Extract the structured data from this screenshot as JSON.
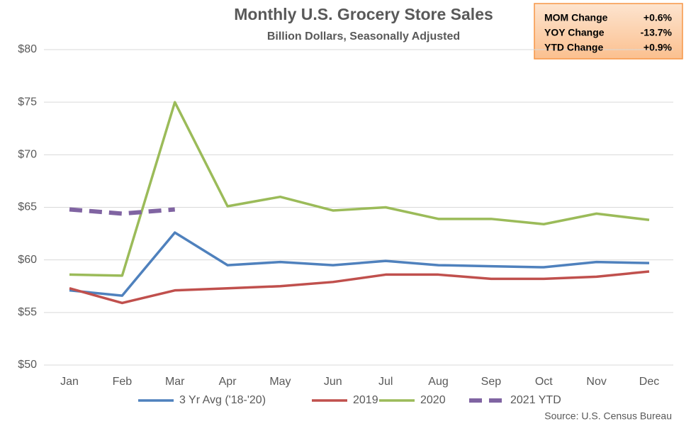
{
  "chart_data": {
    "type": "line",
    "title": "Monthly U.S. Grocery Store Sales",
    "subtitle": "Billion Dollars, Seasonally Adjusted",
    "categories": [
      "Jan",
      "Feb",
      "Mar",
      "Apr",
      "May",
      "Jun",
      "Jul",
      "Aug",
      "Sep",
      "Oct",
      "Nov",
      "Dec"
    ],
    "series": [
      {
        "name": "3 Yr Avg ('18-'20)",
        "color": "#4f81bd",
        "values": [
          57.1,
          56.6,
          62.6,
          59.5,
          59.8,
          59.5,
          59.9,
          59.5,
          59.4,
          59.3,
          59.8,
          59.7
        ]
      },
      {
        "name": "2019",
        "color": "#c0504d",
        "values": [
          57.3,
          55.9,
          57.1,
          57.3,
          57.5,
          57.9,
          58.6,
          58.6,
          58.2,
          58.2,
          58.4,
          58.9
        ]
      },
      {
        "name": "2020",
        "color": "#9bbb59",
        "values": [
          58.6,
          58.5,
          75.0,
          65.1,
          66.0,
          64.7,
          65.0,
          63.9,
          63.9,
          63.4,
          64.4,
          63.8
        ]
      },
      {
        "name": "2021 YTD",
        "color": "#8064a2",
        "style": "dashed",
        "values": [
          64.8,
          64.4,
          64.8,
          null,
          null,
          null,
          null,
          null,
          null,
          null,
          null,
          null
        ]
      }
    ],
    "ylim": [
      50,
      80
    ],
    "yticks": [
      {
        "value": 50,
        "label": "$50"
      },
      {
        "value": 55,
        "label": "$55"
      },
      {
        "value": 60,
        "label": "$60"
      },
      {
        "value": 65,
        "label": "$65"
      },
      {
        "value": 70,
        "label": "$70"
      },
      {
        "value": 75,
        "label": "$75"
      },
      {
        "value": 80,
        "label": "$80"
      }
    ],
    "grid": true,
    "legend": "bottom",
    "stats_box": [
      {
        "label": "MOM Change",
        "value": "+0.6%"
      },
      {
        "label": "YOY Change",
        "value": "-13.7%"
      },
      {
        "label": "YTD Change",
        "value": "+0.9%"
      }
    ],
    "source": "Source: U.S. Census Bureau"
  }
}
